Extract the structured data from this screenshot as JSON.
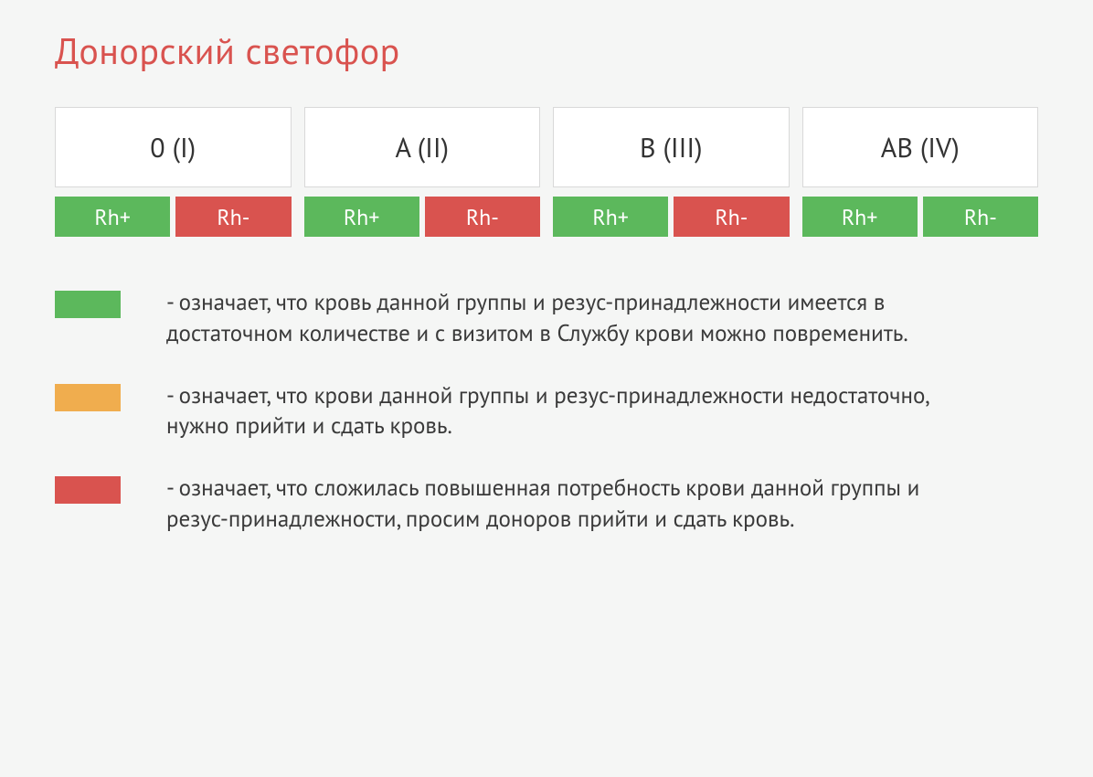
{
  "title": "Донорский светофор",
  "colors": {
    "green": "#5cb85c",
    "yellow": "#f0ad4e",
    "red": "#d9534f",
    "title": "#d9534f",
    "card_bg": "#ffffff",
    "card_border": "#d9d9d9",
    "page_bg": "#f5f6f5",
    "text": "#3a3a3a"
  },
  "groups": [
    {
      "label": "0 (I)",
      "rh_plus": "Rh+",
      "rh_plus_status": "green",
      "rh_minus": "Rh-",
      "rh_minus_status": "red"
    },
    {
      "label": "A (II)",
      "rh_plus": "Rh+",
      "rh_plus_status": "green",
      "rh_minus": "Rh-",
      "rh_minus_status": "red"
    },
    {
      "label": "B (III)",
      "rh_plus": "Rh+",
      "rh_plus_status": "green",
      "rh_minus": "Rh-",
      "rh_minus_status": "red"
    },
    {
      "label": "AB (IV)",
      "rh_plus": "Rh+",
      "rh_plus_status": "green",
      "rh_minus": "Rh-",
      "rh_minus_status": "green"
    }
  ],
  "legend": [
    {
      "status": "green",
      "text": "- означает, что кровь данной группы и резус-принадлежности имеется в достаточном количестве и с визитом в Службу крови можно повременить."
    },
    {
      "status": "yellow",
      "text": "- означает, что крови данной группы и резус-принадлежности недостаточно, нужно прийти и сдать кровь."
    },
    {
      "status": "red",
      "text": "- означает, что сложилась повышенная потребность крови данной группы и резус-принадлежности, просим доноров прийти и сдать кровь."
    }
  ]
}
